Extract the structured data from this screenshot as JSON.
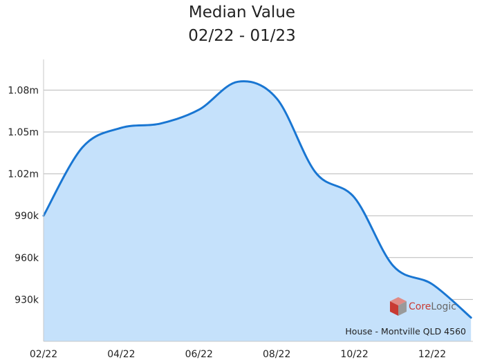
{
  "chart_data": {
    "type": "area",
    "title": "Median Value",
    "subtitle": "02/22 - 01/23",
    "xlabel": "",
    "ylabel": "",
    "x_tick_labels": [
      "02/22",
      "04/22",
      "06/22",
      "08/22",
      "10/22",
      "12/22"
    ],
    "y_tick_labels": [
      "930k",
      "960k",
      "990k",
      "1.02m",
      "1.05m",
      "1.08m"
    ],
    "y_ticks": [
      930000,
      960000,
      990000,
      1020000,
      1050000,
      1080000
    ],
    "ylim": [
      900000,
      1102000
    ],
    "grid": true,
    "series": [
      {
        "x": [
          "2022-02-01",
          "2022-03-01",
          "2022-04-01",
          "2022-05-01",
          "2022-06-01",
          "2022-07-01",
          "2022-08-01",
          "2022-09-01",
          "2022-10-01",
          "2022-11-01",
          "2022-12-01",
          "2023-01-01"
        ],
        "values": [
          990000,
          1039000,
          1053000,
          1056000,
          1066000,
          1086000,
          1074000,
          1021000,
          1003000,
          954000,
          941000,
          917000
        ]
      }
    ],
    "colors": {
      "line": "#1976d2",
      "fill": "#c5e1fb"
    }
  },
  "watermark": {
    "text": "CoreLogic"
  },
  "caption": "House - Montville QLD 4560"
}
